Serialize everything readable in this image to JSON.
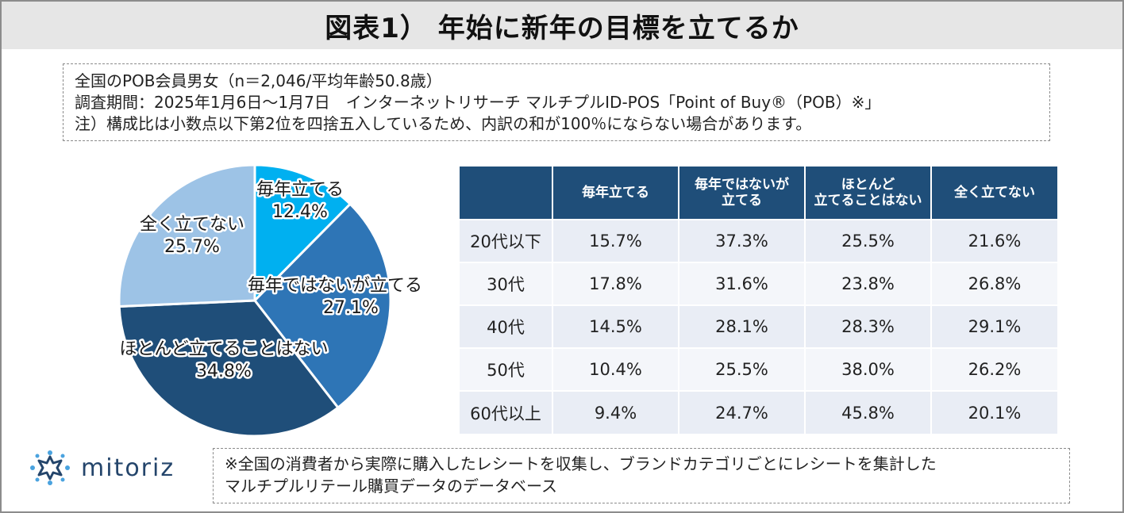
{
  "header": {
    "title": "図表1） 年始に新年の目標を立てるか"
  },
  "notes": [
    "全国のPOB会員男女（n＝2,046/平均年齢50.8歳）",
    "調査期間：2025年1月6日～1月7日　インターネットリサーチ マルチプルID-POS「Point of Buy®（POB）※」",
    "注）構成比は小数点以下第2位を四捨五入しているため、内訳の和が100％にならない場合があります。"
  ],
  "colors": {
    "title_bg": "#e6e6e6",
    "table_header": "#1f4e79",
    "row_even": "#e9edf5",
    "row_odd": "#f4f6fa",
    "slice_1": "#00b0f0",
    "slice_2": "#2e75b6",
    "slice_3": "#1f4e79",
    "slice_4": "#9dc3e6"
  },
  "chart_data": [
    {
      "type": "pie",
      "slices": [
        {
          "label": "毎年立てる",
          "value": 12.4,
          "display": "12.4%",
          "color": "#00b0f0"
        },
        {
          "label": "毎年ではないが立てる",
          "value": 27.1,
          "display": "27.1%",
          "color": "#2e75b6"
        },
        {
          "label": "ほとんど立てることはない",
          "value": 34.8,
          "display": "34.8%",
          "color": "#1f4e79"
        },
        {
          "label": "全く立てない",
          "value": 25.7,
          "display": "25.7%",
          "color": "#9dc3e6"
        }
      ]
    },
    {
      "type": "table",
      "columns": [
        "毎年立てる",
        "毎年ではないが\n立てる",
        "ほとんど\n立てることはない",
        "全く立てない"
      ],
      "rows": [
        {
          "label": "20代以下",
          "values": [
            "15.7%",
            "37.3%",
            "25.5%",
            "21.6%"
          ]
        },
        {
          "label": "30代",
          "values": [
            "17.8%",
            "31.6%",
            "23.8%",
            "26.8%"
          ]
        },
        {
          "label": "40代",
          "values": [
            "14.5%",
            "28.1%",
            "28.3%",
            "29.1%"
          ]
        },
        {
          "label": "50代",
          "values": [
            "10.4%",
            "25.5%",
            "38.0%",
            "26.2%"
          ]
        },
        {
          "label": "60代以上",
          "values": [
            "9.4%",
            "24.7%",
            "45.8%",
            "20.1%"
          ]
        }
      ]
    }
  ],
  "logo": {
    "text": "mitoriz",
    "icon": "sparkle-logo-icon"
  },
  "footnote": [
    "※全国の消費者から実際に購入したレシートを収集し、ブランドカテゴリごとにレシートを集計した",
    "マルチプルリテール購買データのデータベース"
  ]
}
